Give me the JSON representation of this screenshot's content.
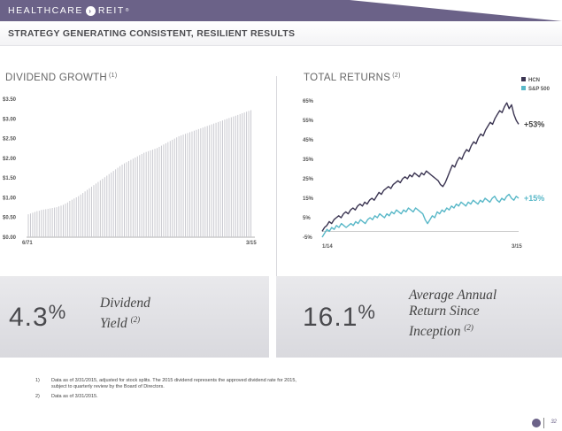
{
  "header": {
    "logo_text": "HEALTHCARE",
    "logo_text2": "REIT",
    "logo_mark": "›",
    "trademark": "®",
    "title": "STRATEGY GENERATING CONSISTENT, RESILIENT RESULTS"
  },
  "left_section": {
    "label": "DIVIDEND GROWTH",
    "footnote_ref": "(1)"
  },
  "right_section": {
    "label": "TOTAL RETURNS",
    "footnote_ref": "(2)"
  },
  "chart_data": [
    {
      "type": "bar",
      "title": "DIVIDEND GROWTH",
      "ylim": [
        0,
        3.5
      ],
      "yticks": [
        "$3.50",
        "$3.00",
        "$2.50",
        "$2.00",
        "$1.50",
        "$1.00",
        "$0.50",
        "$0.00"
      ],
      "x_start_label": "6/71",
      "x_end_label": "3/15",
      "values": [
        0.58,
        0.6,
        0.62,
        0.64,
        0.66,
        0.67,
        0.69,
        0.7,
        0.71,
        0.72,
        0.73,
        0.74,
        0.75,
        0.76,
        0.78,
        0.8,
        0.82,
        0.85,
        0.88,
        0.92,
        0.95,
        0.98,
        1.01,
        1.04,
        1.08,
        1.12,
        1.16,
        1.2,
        1.24,
        1.28,
        1.32,
        1.36,
        1.4,
        1.44,
        1.48,
        1.52,
        1.56,
        1.6,
        1.64,
        1.68,
        1.72,
        1.76,
        1.8,
        1.84,
        1.87,
        1.9,
        1.93,
        1.96,
        1.99,
        2.02,
        2.05,
        2.08,
        2.11,
        2.14,
        2.16,
        2.18,
        2.2,
        2.22,
        2.24,
        2.26,
        2.29,
        2.32,
        2.35,
        2.38,
        2.41,
        2.44,
        2.47,
        2.5,
        2.53,
        2.56,
        2.58,
        2.6,
        2.62,
        2.64,
        2.66,
        2.68,
        2.7,
        2.72,
        2.74,
        2.76,
        2.78,
        2.8,
        2.82,
        2.84,
        2.86,
        2.88,
        2.9,
        2.92,
        2.94,
        2.96,
        2.98,
        3.0,
        3.02,
        3.04,
        3.06,
        3.08,
        3.1,
        3.12,
        3.14,
        3.16,
        3.18,
        3.2,
        3.22
      ]
    },
    {
      "type": "line",
      "title": "TOTAL RETURNS",
      "ylim": [
        -5,
        65
      ],
      "yticks": [
        "65%",
        "55%",
        "45%",
        "35%",
        "25%",
        "15%",
        "5%",
        "-5%"
      ],
      "x_start_label": "1/14",
      "x_end_label": "3/15",
      "series": [
        {
          "name": "HCN",
          "color": "#3b3552",
          "end_label": "+53%",
          "values": [
            -2,
            0,
            1,
            3,
            2,
            4,
            5,
            6,
            5,
            7,
            8,
            7,
            9,
            10,
            9,
            11,
            12,
            11,
            13,
            12,
            14,
            15,
            14,
            16,
            18,
            17,
            19,
            20,
            21,
            20,
            22,
            23,
            24,
            23,
            25,
            26,
            25,
            27,
            26,
            28,
            27,
            26,
            28,
            27,
            29,
            28,
            27,
            26,
            25,
            24,
            22,
            21,
            23,
            26,
            29,
            32,
            31,
            34,
            36,
            35,
            38,
            40,
            39,
            42,
            44,
            43,
            46,
            48,
            47,
            50,
            52,
            54,
            53,
            56,
            58,
            60,
            59,
            62,
            64,
            61,
            63,
            58,
            55,
            53
          ]
        },
        {
          "name": "S&P 500",
          "color": "#59b8c8",
          "end_label": "+15%",
          "values": [
            -5,
            -3,
            -1,
            -2,
            0,
            -1,
            1,
            0,
            2,
            1,
            0,
            1,
            2,
            1,
            3,
            2,
            4,
            3,
            2,
            4,
            5,
            4,
            6,
            5,
            7,
            6,
            5,
            7,
            6,
            8,
            7,
            9,
            8,
            7,
            9,
            8,
            10,
            9,
            8,
            10,
            9,
            8,
            7,
            4,
            2,
            4,
            6,
            5,
            8,
            7,
            9,
            8,
            10,
            9,
            11,
            10,
            12,
            11,
            13,
            12,
            11,
            13,
            12,
            14,
            13,
            12,
            14,
            13,
            15,
            14,
            13,
            15,
            16,
            14,
            13,
            15,
            14,
            16,
            17,
            15,
            14,
            16,
            15
          ]
        }
      ]
    }
  ],
  "stats": {
    "left_value": "4.3",
    "left_pct": "%",
    "left_label_line1": "Dividend",
    "left_label_line2": "Yield",
    "left_ref": "(2)",
    "right_value": "16.1",
    "right_pct": "%",
    "right_label_line1": "Average Annual",
    "right_label_line2": "Return Since",
    "right_label_line3": "Inception",
    "right_ref": "(2)"
  },
  "footnotes": [
    {
      "num": "1)",
      "line1": "Data as of 3/31/2015, adjusted for stock splits. The 2015 dividend represents the approved dividend rate for 2015,",
      "line2": "subject to quarterly review by the Board of Directors."
    },
    {
      "num": "2)",
      "line1": "Data as of 3/31/2015.",
      "line2": ""
    }
  ],
  "page_number": "32",
  "colors": {
    "brand": "#6b6288",
    "hcn": "#3b3552",
    "sp500": "#59b8c8"
  }
}
